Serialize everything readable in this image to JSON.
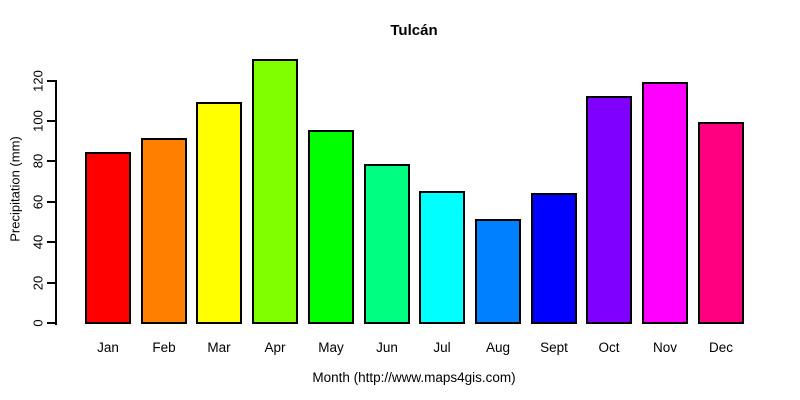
{
  "chart_data": {
    "type": "bar",
    "title": "Tulcán",
    "xlabel": "Month (http://www.maps4gis.com)",
    "ylabel": "Precipitation (mm)",
    "categories": [
      "Jan",
      "Feb",
      "Mar",
      "Apr",
      "May",
      "Jun",
      "Jul",
      "Aug",
      "Sept",
      "Oct",
      "Nov",
      "Dec"
    ],
    "values": [
      84,
      91,
      109,
      130,
      95,
      78,
      65,
      51,
      64,
      112,
      119,
      99
    ],
    "bar_colors": [
      "#FF0000",
      "#FF8000",
      "#FFFF00",
      "#80FF00",
      "#00FF00",
      "#00FF80",
      "#00FFFF",
      "#0080FF",
      "#0000FF",
      "#8000FF",
      "#FF00FF",
      "#FF0080"
    ],
    "bar_border_color": "#000000",
    "axis_color": "#000000",
    "background_color": "#FFFFFF",
    "yticks": [
      0,
      20,
      40,
      60,
      80,
      100,
      120
    ],
    "ylim": [
      0,
      131
    ],
    "grid": false,
    "legend": false
  }
}
